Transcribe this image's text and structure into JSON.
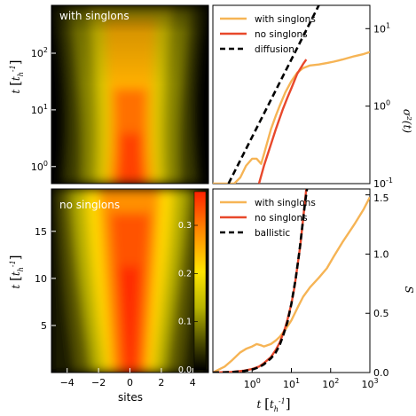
{
  "chart_data": [
    {
      "type": "heatmap",
      "panel": "top-left",
      "label": "with singlons",
      "xlim": [
        -5,
        5
      ],
      "ylog": true,
      "ylim": [
        0.5,
        700
      ],
      "yticks": [
        {
          "v": 1,
          "base": "10",
          "exp": "0"
        },
        {
          "v": 10,
          "base": "10",
          "exp": "1"
        },
        {
          "v": 100,
          "base": "10",
          "exp": "2"
        }
      ],
      "ylabel_main": "t",
      "ylabel_unit": "t",
      "ylabel_sub": "h",
      "ylabel_sup": "-1",
      "colormap": [
        "#000000",
        "#5a5a00",
        "#b8b800",
        "#ffee00",
        "#ff7a00",
        "#ff2200"
      ]
    },
    {
      "type": "line",
      "panel": "top-right",
      "xlog": true,
      "ylog": true,
      "xlim": [
        0.1,
        1000
      ],
      "ylim": [
        0.1,
        20
      ],
      "yaxis_side": "right",
      "yticks": [
        {
          "v": 0.1,
          "base": "10",
          "exp": "-1"
        },
        {
          "v": 1,
          "base": "10",
          "exp": "0"
        },
        {
          "v": 10,
          "base": "10",
          "exp": "1"
        }
      ],
      "ylabel": "σ²(t)",
      "legend": [
        {
          "label": "with singlons",
          "color": "#f6b455",
          "dash": false
        },
        {
          "label": "no singlons",
          "color": "#e8482b",
          "dash": false
        },
        {
          "label": "diffusion",
          "color": "#000000",
          "dash": true
        }
      ],
      "series": [
        {
          "name": "with singlons",
          "color": "#f6b455",
          "x": [
            0.1,
            0.2,
            0.35,
            0.5,
            0.7,
            1.0,
            1.3,
            1.7,
            2.0,
            2.5,
            3.0,
            4.0,
            5.0,
            7.0,
            10,
            14,
            20,
            30,
            50,
            80,
            120,
            200,
            400,
            700,
            1000
          ],
          "y": [
            0.1,
            0.1,
            0.1,
            0.12,
            0.17,
            0.21,
            0.21,
            0.18,
            0.24,
            0.36,
            0.5,
            0.75,
            1.0,
            1.5,
            2.1,
            2.7,
            3.1,
            3.35,
            3.45,
            3.6,
            3.75,
            4.0,
            4.4,
            4.7,
            5.0
          ]
        },
        {
          "name": "no singlons",
          "color": "#e8482b",
          "x": [
            1.5,
            2.0,
            3.0,
            4.0,
            6.0,
            8.0,
            10,
            14,
            20,
            24
          ],
          "y": [
            0.1,
            0.17,
            0.32,
            0.5,
            0.9,
            1.3,
            1.7,
            2.6,
            3.5,
            4.0
          ]
        },
        {
          "name": "diffusion",
          "color": "#000000",
          "dash": true,
          "x": [
            0.25,
            1000
          ],
          "y": [
            0.1,
            400
          ]
        }
      ]
    },
    {
      "type": "heatmap",
      "panel": "bottom-left",
      "label": "no singlons",
      "xlim": [
        -5,
        5
      ],
      "xticks": [
        -4,
        -2,
        0,
        2,
        4
      ],
      "xlabel": "sites",
      "ylim": [
        0,
        19.5
      ],
      "yticks": [
        5,
        10,
        15
      ],
      "ylabel_main": "t",
      "ylabel_unit": "t",
      "ylabel_sub": "h",
      "ylabel_sup": "-1",
      "colorbar": {
        "ticks": [
          0.0,
          0.1,
          0.2,
          0.3
        ],
        "max": 0.37,
        "stops": [
          "#000000",
          "#5a5a00",
          "#b8b800",
          "#ffee00",
          "#ff7a00",
          "#ff2200"
        ]
      }
    },
    {
      "type": "line",
      "panel": "bottom-right",
      "xlog": true,
      "xlim": [
        0.1,
        1000
      ],
      "xticks": [
        {
          "v": 1,
          "base": "10",
          "exp": "0"
        },
        {
          "v": 10,
          "base": "10",
          "exp": "1"
        },
        {
          "v": 100,
          "base": "10",
          "exp": "2"
        },
        {
          "v": 1000,
          "base": "10",
          "exp": "3"
        }
      ],
      "xlabel_main": "t",
      "xlabel_unit": "t",
      "xlabel_sub": "h",
      "xlabel_sup": "-1",
      "ylim": [
        0,
        1.55
      ],
      "yticks": [
        0.0,
        0.5,
        1.0,
        1.5
      ],
      "yaxis_side": "right",
      "ylabel": "S",
      "legend": [
        {
          "label": "with singlons",
          "color": "#f6b455",
          "dash": false
        },
        {
          "label": "no singlons",
          "color": "#e8482b",
          "dash": false
        },
        {
          "label": "ballistic",
          "color": "#000000",
          "dash": true
        }
      ],
      "series": [
        {
          "name": "with singlons",
          "color": "#f6b455",
          "x": [
            0.1,
            0.2,
            0.3,
            0.5,
            0.7,
            1.0,
            1.3,
            1.7,
            2.0,
            3.0,
            4.0,
            5.0,
            7.0,
            10,
            15,
            20,
            30,
            50,
            80,
            120,
            200,
            400,
            700,
            1000
          ],
          "y": [
            0.0,
            0.05,
            0.1,
            0.17,
            0.2,
            0.22,
            0.24,
            0.23,
            0.22,
            0.24,
            0.27,
            0.3,
            0.36,
            0.44,
            0.56,
            0.64,
            0.72,
            0.8,
            0.88,
            0.98,
            1.1,
            1.25,
            1.38,
            1.48
          ]
        },
        {
          "name": "no singlons",
          "color": "#e8482b",
          "x": [
            0.1,
            0.3,
            0.6,
            1.0,
            1.5,
            2.0,
            3.0,
            4.0,
            5.0,
            6.0,
            7.0,
            8.0,
            10,
            12,
            14,
            17,
            20,
            24
          ],
          "y": [
            0.0,
            0.005,
            0.015,
            0.03,
            0.05,
            0.08,
            0.13,
            0.19,
            0.25,
            0.32,
            0.38,
            0.45,
            0.58,
            0.72,
            0.88,
            1.08,
            1.3,
            1.55
          ]
        },
        {
          "name": "ballistic",
          "color": "#000000",
          "dash": true,
          "x": [
            0.1,
            0.3,
            0.6,
            1.0,
            1.5,
            2.0,
            3.0,
            4.0,
            5.0,
            6.0,
            8.0,
            10,
            13,
            16,
            19,
            22,
            25
          ],
          "y": [
            0.0,
            0.004,
            0.012,
            0.025,
            0.045,
            0.07,
            0.12,
            0.17,
            0.23,
            0.3,
            0.43,
            0.58,
            0.8,
            1.02,
            1.23,
            1.42,
            1.55
          ]
        }
      ]
    }
  ]
}
